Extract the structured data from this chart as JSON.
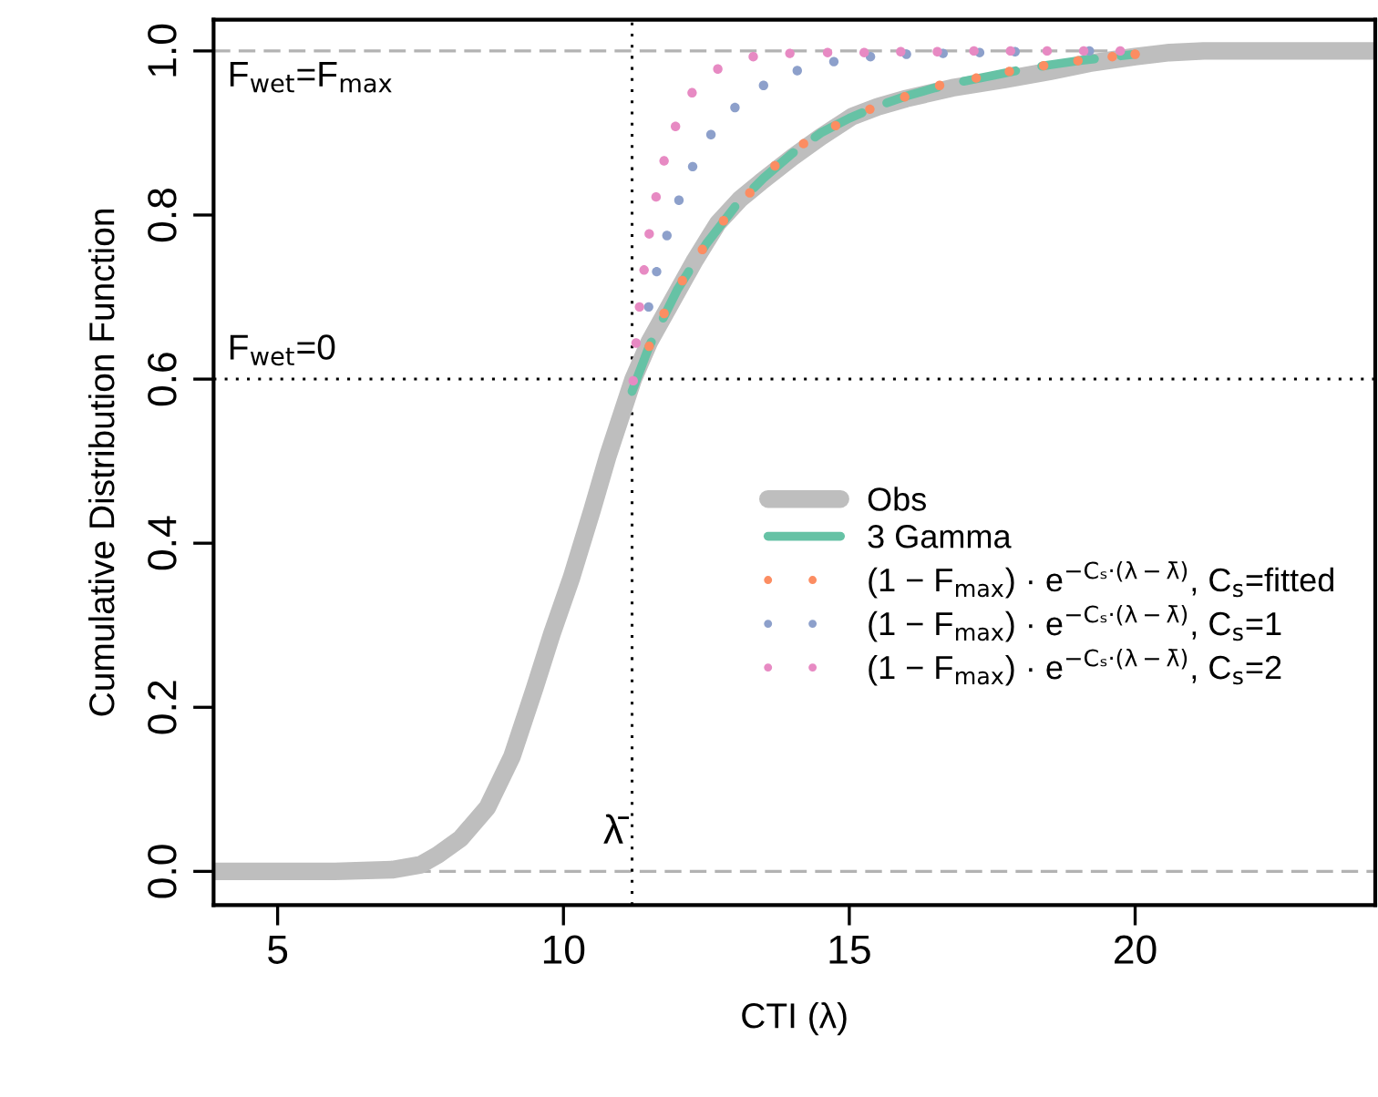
{
  "chart_data": {
    "type": "line",
    "xlabel": "CTI (λ)",
    "ylabel": "Cumulative Distribution Function",
    "xlim": [
      3.88,
      24.2
    ],
    "ylim": [
      -0.041,
      1.038
    ],
    "xticks": [
      5,
      10,
      15,
      20
    ],
    "yticks": [
      {
        "value": 0,
        "label": "0.0"
      },
      {
        "value": 0.2,
        "label": "0.2"
      },
      {
        "value": 0.4,
        "label": "0.4"
      },
      {
        "value": 0.6,
        "label": "0.6"
      },
      {
        "value": 0.8,
        "label": "0.8"
      },
      {
        "value": 1,
        "label": "1.0"
      }
    ],
    "grid": false,
    "legend": "right",
    "ref_lines": [
      {
        "axis": "y",
        "value": 1,
        "color": "#b3b3b3",
        "line_style": "dashed"
      },
      {
        "axis": "y",
        "value": 0,
        "color": "#b3b3b3",
        "line_style": "dashed"
      },
      {
        "axis": "y",
        "value": 0.6,
        "color": "#000000",
        "line_style": "dotted"
      },
      {
        "axis": "x",
        "value": 11.2,
        "color": "#000000",
        "line_style": "dotted",
        "label": "λ̄"
      }
    ],
    "annotations": [
      {
        "text": "F$_{wet}$=F$_{max}$",
        "y": 1
      },
      {
        "text": "F$_{wet}$=0",
        "y": 0.6
      }
    ],
    "series": [
      {
        "name": "Obs",
        "line_style": "solid",
        "color": "#bebebe",
        "x": [
          3.88,
          5,
          6,
          7,
          7.5,
          7.8,
          8.2,
          8.67,
          9.1,
          9.5,
          9.8,
          10.14,
          10.5,
          10.78,
          11.22,
          11.5,
          11.86,
          12.3,
          12.7,
          13.1,
          13.45,
          14,
          14.5,
          15.05,
          15.5,
          16,
          16.8,
          17.7,
          18.5,
          19.2,
          20,
          20.6,
          21.2,
          22,
          24.2
        ],
        "values": [
          0,
          0,
          0,
          0.002,
          0.008,
          0.02,
          0.04,
          0.078,
          0.14,
          0.224,
          0.29,
          0.358,
          0.44,
          0.507,
          0.6,
          0.645,
          0.69,
          0.745,
          0.79,
          0.82,
          0.84,
          0.87,
          0.895,
          0.92,
          0.932,
          0.942,
          0.955,
          0.965,
          0.975,
          0.985,
          0.993,
          0.998,
          1,
          1,
          1
        ]
      },
      {
        "name": "3 Gamma",
        "line_style": "dashed",
        "color": "#66c2a5",
        "x": [
          11.2,
          11.5,
          12,
          12.5,
          13,
          13.5,
          14,
          14.5,
          15,
          15.5,
          16,
          16.5,
          17,
          17.5,
          18,
          18.5,
          19,
          19.5,
          20
        ],
        "values": [
          0.585,
          0.64,
          0.71,
          0.765,
          0.81,
          0.845,
          0.875,
          0.9,
          0.918,
          0.933,
          0.945,
          0.955,
          0.963,
          0.97,
          0.977,
          0.983,
          0.988,
          0.992,
          0.996
        ]
      },
      {
        "name": "(1 − F$_{max}$) · e$^{−Cₛ·(λ−λ̄)}$, C$_{s}$=fitted",
        "type": "scatter",
        "marker": "circle",
        "color": "#fc8d62",
        "x": [
          11.5,
          11.76,
          12.08,
          12.43,
          12.8,
          13.26,
          13.7,
          14.2,
          14.76,
          15.36,
          15.97,
          16.58,
          17.22,
          17.8,
          18.4,
          19.0,
          19.6,
          20
        ],
        "values": [
          0.64,
          0.68,
          0.72,
          0.758,
          0.793,
          0.827,
          0.86,
          0.887,
          0.909,
          0.929,
          0.944,
          0.958,
          0.967,
          0.975,
          0.982,
          0.988,
          0.993,
          0.996
        ]
      },
      {
        "name": "(1 − F$_{max}$) · e$^{−Cₛ·(λ−λ̄)}$, C$_{s}$=1",
        "type": "scatter",
        "marker": "circle",
        "color": "#8da0cb",
        "x": [
          11.49,
          11.63,
          11.81,
          12.02,
          12.26,
          12.58,
          13.0,
          13.5,
          14.09,
          14.73,
          15.37,
          16.0,
          16.64,
          17.28,
          17.9,
          18.5,
          19.2
        ],
        "values": [
          0.688,
          0.731,
          0.775,
          0.818,
          0.859,
          0.898,
          0.931,
          0.958,
          0.976,
          0.987,
          0.993,
          0.996,
          0.997,
          0.998,
          0.999,
          null,
          1
        ]
      },
      {
        "name": "(1 − F$_{max}$) · e$^{−Cₛ·(λ−λ̄)}$, C$_{s}$=2",
        "type": "scatter",
        "marker": "circle",
        "color": "#e78ac3",
        "x": [
          11.22,
          11.27,
          11.33,
          11.41,
          11.5,
          11.62,
          11.76,
          11.96,
          12.25,
          12.7,
          13.32,
          13.96,
          14.62,
          15.26,
          15.9,
          16.54,
          17.18,
          17.82,
          18.46,
          19.1,
          19.74
        ],
        "values": [
          0.598,
          0.644,
          0.688,
          0.733,
          0.777,
          0.822,
          0.866,
          0.908,
          0.949,
          0.978,
          0.993,
          0.997,
          0.998,
          0.998,
          0.999,
          0.999,
          1,
          1,
          1,
          1,
          1
        ]
      }
    ]
  }
}
